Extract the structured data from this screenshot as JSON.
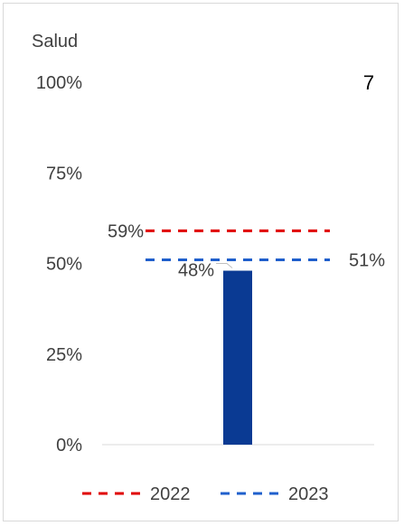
{
  "chart_data": {
    "type": "bar",
    "title": "Salud",
    "corner_label": "7",
    "ylim": [
      0,
      100
    ],
    "y_ticks": [
      "0%",
      "25%",
      "50%",
      "75%",
      "100%"
    ],
    "y_tick_values": [
      0,
      25,
      50,
      75,
      100
    ],
    "bar": {
      "value": 48,
      "label": "48%",
      "color": "#0a3a93"
    },
    "reference_lines": [
      {
        "name": "2022",
        "value": 59,
        "label": "59%",
        "color": "#e00000"
      },
      {
        "name": "2023",
        "value": 51,
        "label": "51%",
        "color": "#1f5fcc"
      }
    ],
    "legend": {
      "placement": "bottom",
      "items": [
        {
          "name": "2022",
          "color": "#e00000"
        },
        {
          "name": "2023",
          "color": "#1f5fcc"
        }
      ]
    },
    "grid": false
  }
}
